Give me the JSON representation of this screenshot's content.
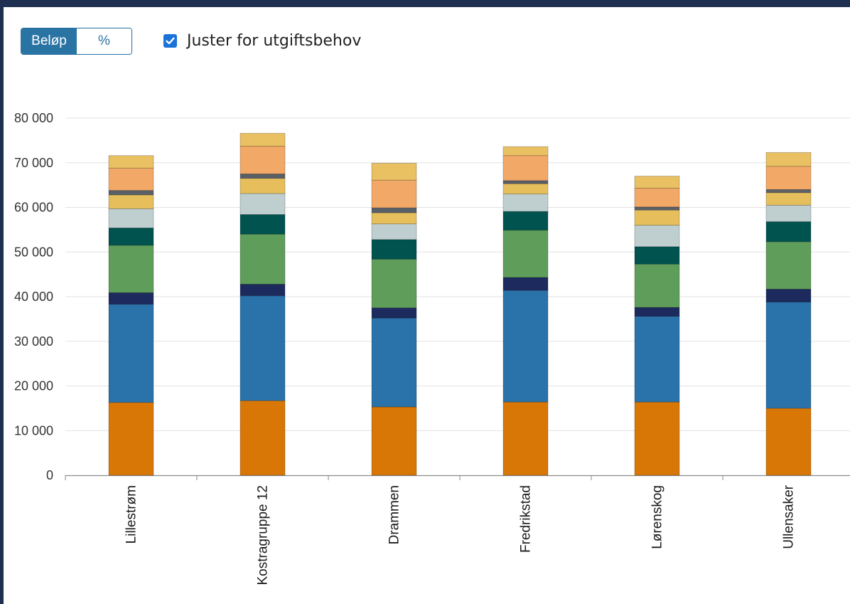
{
  "controls": {
    "toggle_options": [
      {
        "label": "Beløp",
        "active": true
      },
      {
        "label": "%",
        "active": false
      }
    ],
    "checkbox": {
      "label": "Juster for utgiftsbehov",
      "checked": true
    }
  },
  "colors": {
    "grid": "#e2e2e2",
    "axis": "#8a8a8a",
    "segments": [
      "#d97706",
      "#2a72aa",
      "#1c2a5e",
      "#5f9e5a",
      "#00534f",
      "#bfcfd0",
      "#e6bf5c",
      "#5a6068",
      "#f2a866",
      "#e9c062"
    ]
  },
  "chart_data": {
    "type": "bar",
    "stacked": true,
    "categories": [
      "Lillestrøm",
      "Kostragruppe 12",
      "Drammen",
      "Fredrikstad",
      "Lørenskog",
      "Ullensaker"
    ],
    "series": [
      {
        "values": [
          16300,
          16700,
          15300,
          16400,
          16400,
          15000
        ]
      },
      {
        "values": [
          22000,
          23500,
          19900,
          25000,
          19200,
          23800
        ]
      },
      {
        "values": [
          2600,
          2600,
          2300,
          2900,
          2000,
          2900
        ]
      },
      {
        "values": [
          10600,
          11200,
          10900,
          10600,
          9700,
          10600
        ]
      },
      {
        "values": [
          3900,
          4400,
          4400,
          4200,
          3900,
          4500
        ]
      },
      {
        "values": [
          4300,
          4700,
          3500,
          3900,
          4800,
          3700
        ]
      },
      {
        "values": [
          3100,
          3400,
          2500,
          2300,
          3400,
          2800
        ]
      },
      {
        "values": [
          1000,
          1000,
          1100,
          700,
          700,
          700
        ]
      },
      {
        "values": [
          5000,
          6200,
          6200,
          5600,
          4200,
          5200
        ]
      },
      {
        "values": [
          2800,
          2900,
          3800,
          2000,
          2700,
          3100
        ]
      }
    ],
    "y_ticks": [
      "0",
      "10 000",
      "20 000",
      "30 000",
      "40 000",
      "50 000",
      "60 000",
      "70 000",
      "80 000"
    ],
    "ylim": [
      0,
      80000
    ],
    "grid": true,
    "legend": "none"
  }
}
